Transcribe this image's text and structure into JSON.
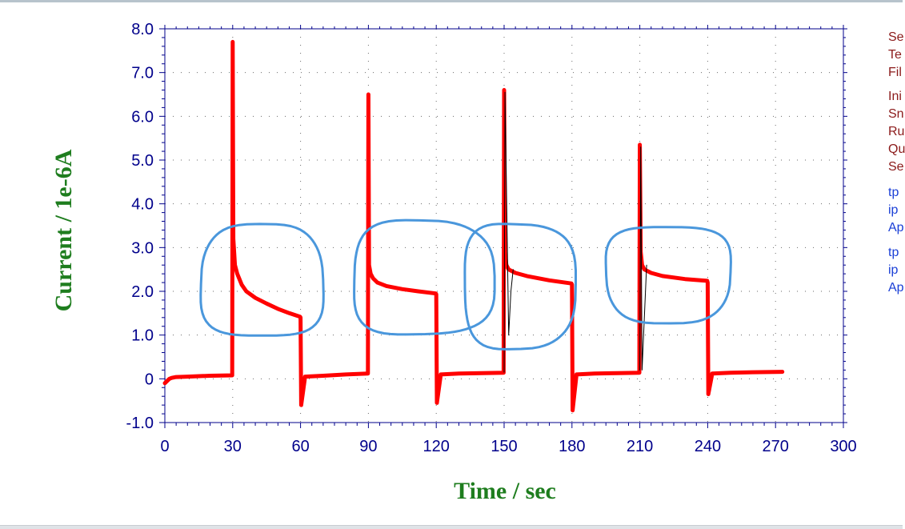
{
  "window": {
    "border_color": "#b7c3cc",
    "bottom_bar_color": "#dfe3e7"
  },
  "chart_data": {
    "type": "line",
    "xlabel": "Time / sec",
    "ylabel": "Current / 1e-6A",
    "xlim": [
      0,
      300
    ],
    "ylim": [
      -1.0,
      8.0
    ],
    "xticks": [
      "0",
      "30",
      "60",
      "90",
      "120",
      "150",
      "180",
      "210",
      "240",
      "270",
      "300"
    ],
    "yticks": [
      "8.0",
      "7.0",
      "6.0",
      "5.0",
      "4.0",
      "3.0",
      "2.0",
      "1.0",
      "0",
      "-1.0"
    ],
    "grid": true,
    "grid_style": "dotted",
    "series": [
      {
        "color": "#ff0000",
        "x": [
          0,
          1,
          2,
          3,
          5,
          10,
          20,
          29.8,
          30,
          30.3,
          31,
          32,
          34,
          36,
          40,
          45,
          50,
          55,
          59.8,
          60,
          60.3,
          62,
          70,
          80,
          89.8,
          90,
          90.3,
          91,
          92,
          94,
          98,
          105,
          112,
          119.8,
          120,
          120.3,
          122,
          130,
          140,
          149.8,
          150,
          150.4,
          151,
          152,
          155,
          160,
          170,
          179.8,
          180,
          180.3,
          182,
          190,
          200,
          209.8,
          210,
          210.4,
          211,
          212,
          215,
          220,
          230,
          239.8,
          240,
          240.3,
          242,
          250,
          260,
          273
        ],
        "y": [
          -0.1,
          -0.05,
          0.0,
          0.02,
          0.04,
          0.05,
          0.07,
          0.08,
          7.7,
          3.2,
          2.6,
          2.4,
          2.15,
          2.0,
          1.85,
          1.72,
          1.6,
          1.5,
          1.42,
          1.4,
          -0.6,
          0.05,
          0.07,
          0.1,
          0.12,
          6.5,
          2.6,
          2.4,
          2.3,
          2.2,
          2.12,
          2.05,
          2.0,
          1.95,
          1.93,
          -0.55,
          0.1,
          0.12,
          0.13,
          0.14,
          6.6,
          2.9,
          2.6,
          2.5,
          2.42,
          2.35,
          2.25,
          2.18,
          2.15,
          -0.72,
          0.1,
          0.12,
          0.13,
          0.14,
          5.35,
          2.9,
          2.6,
          2.5,
          2.42,
          2.35,
          2.28,
          2.24,
          2.2,
          -0.35,
          0.12,
          0.14,
          0.15,
          0.16
        ]
      },
      {
        "color": "#000000",
        "x": [
          150,
          150.4,
          152,
          153,
          154
        ],
        "y": [
          0.15,
          6.55,
          1.0,
          2.0,
          2.5
        ]
      },
      {
        "color": "#000000",
        "x": [
          210,
          210.4,
          211,
          213
        ],
        "y": [
          0.2,
          5.3,
          0.2,
          2.6
        ]
      }
    ],
    "annotations": [
      {
        "type": "hand-drawn-circle",
        "color": "#4a97dc",
        "x_range": [
          16,
          70
        ],
        "y_range": [
          0.95,
          3.5
        ]
      },
      {
        "type": "hand-drawn-circle",
        "color": "#4a97dc",
        "x_range": [
          83,
          145
        ],
        "y_range": [
          1.0,
          3.6
        ]
      },
      {
        "type": "hand-drawn-circle",
        "color": "#4a97dc",
        "x_range": [
          132,
          181
        ],
        "y_range": [
          0.7,
          3.55
        ]
      },
      {
        "type": "hand-drawn-circle",
        "color": "#4a97dc",
        "x_range": [
          195,
          250
        ],
        "y_range": [
          1.3,
          3.5
        ]
      }
    ]
  },
  "side_panel": {
    "groups": [
      {
        "color": "#8b1a1a",
        "lines": [
          "Se",
          "Te",
          "Fil"
        ]
      },
      {
        "color": "#8b1a1a",
        "lines": [
          "Ini",
          "Sn",
          "Ru",
          "Qu",
          "Se"
        ]
      },
      {
        "color": "#1a3fd6",
        "lines": [
          "tp",
          "ip",
          "Ap"
        ]
      },
      {
        "color": "#1a3fd6",
        "lines": [
          "tp",
          "ip",
          "Ap"
        ]
      }
    ]
  }
}
